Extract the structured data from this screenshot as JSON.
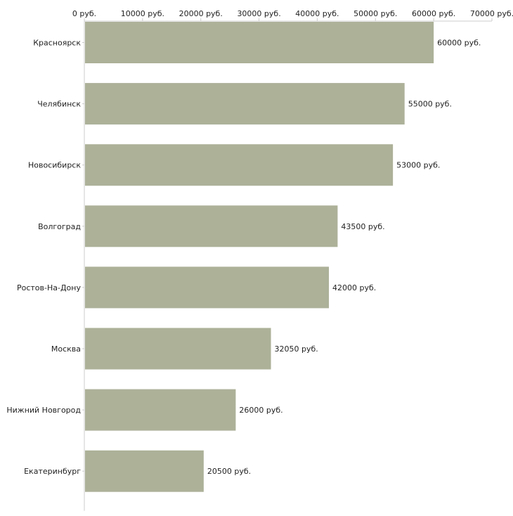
{
  "chart_data": {
    "type": "bar",
    "orientation": "horizontal",
    "title": "",
    "xlabel": "",
    "ylabel": "",
    "categories": [
      "Красноярск",
      "Челябинск",
      "Новосибирск",
      "Волгоград",
      "Ростов-На-Дону",
      "Москва",
      "Нижний Новгород",
      "Екатеринбург"
    ],
    "values": [
      60000,
      55000,
      53000,
      43500,
      42000,
      32050,
      26000,
      20500
    ],
    "value_labels": [
      "60000 руб.",
      "55000 руб.",
      "53000 руб.",
      "43500 руб.",
      "42000 руб.",
      "32050 руб.",
      "26000 руб.",
      "20500 руб."
    ],
    "xlim": [
      0,
      70000
    ],
    "x_ticks": [
      0,
      10000,
      20000,
      30000,
      40000,
      50000,
      60000,
      70000
    ],
    "x_tick_labels": [
      "0 руб.",
      "10000 руб.",
      "20000 руб.",
      "30000 руб.",
      "40000 руб.",
      "50000 руб.",
      "60000 руб.",
      "70000 руб."
    ],
    "axis_position": "top",
    "grid": false,
    "legend": "none",
    "bar_color": "#acb198",
    "axis_color": "#cccccc"
  }
}
